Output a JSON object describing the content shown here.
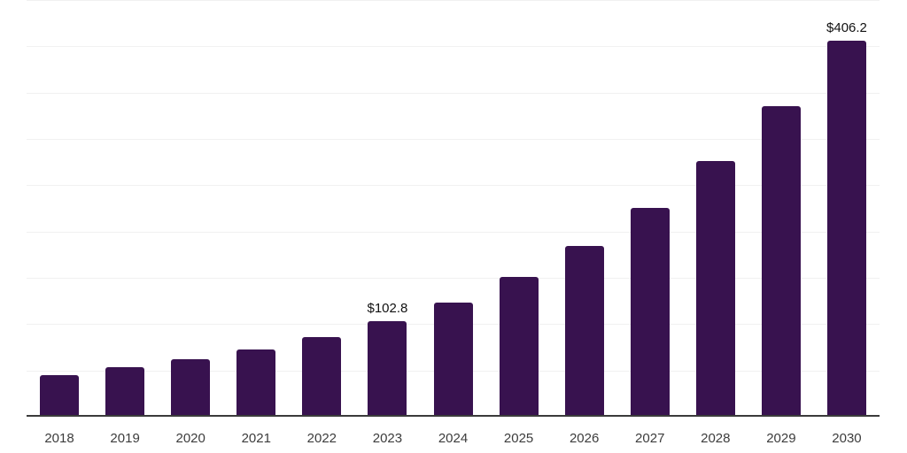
{
  "chart_data": {
    "type": "bar",
    "title": "",
    "xlabel": "",
    "ylabel": "",
    "categories": [
      "2018",
      "2019",
      "2020",
      "2021",
      "2022",
      "2023",
      "2024",
      "2025",
      "2026",
      "2027",
      "2028",
      "2029",
      "2030"
    ],
    "values": [
      44.5,
      53.7,
      62.3,
      72.7,
      85.8,
      102.8,
      123.6,
      151.3,
      184.2,
      225.6,
      275.7,
      335.2,
      406.2
    ],
    "value_labels": [
      {
        "index": 5,
        "text": "$102.8"
      },
      {
        "index": 12,
        "text": "$406.2"
      }
    ],
    "ylim": [
      0,
      450
    ],
    "grid_step": 50,
    "grid": true,
    "legend": "none",
    "y_axis_tick_labels": "none",
    "colors": {
      "bar": "#38124F",
      "grid": "#F1F1F1",
      "axis": "#3B3B3B",
      "tick_label": "#3C3C3C",
      "value_label": "#111111",
      "background": "#FFFFFF"
    }
  }
}
